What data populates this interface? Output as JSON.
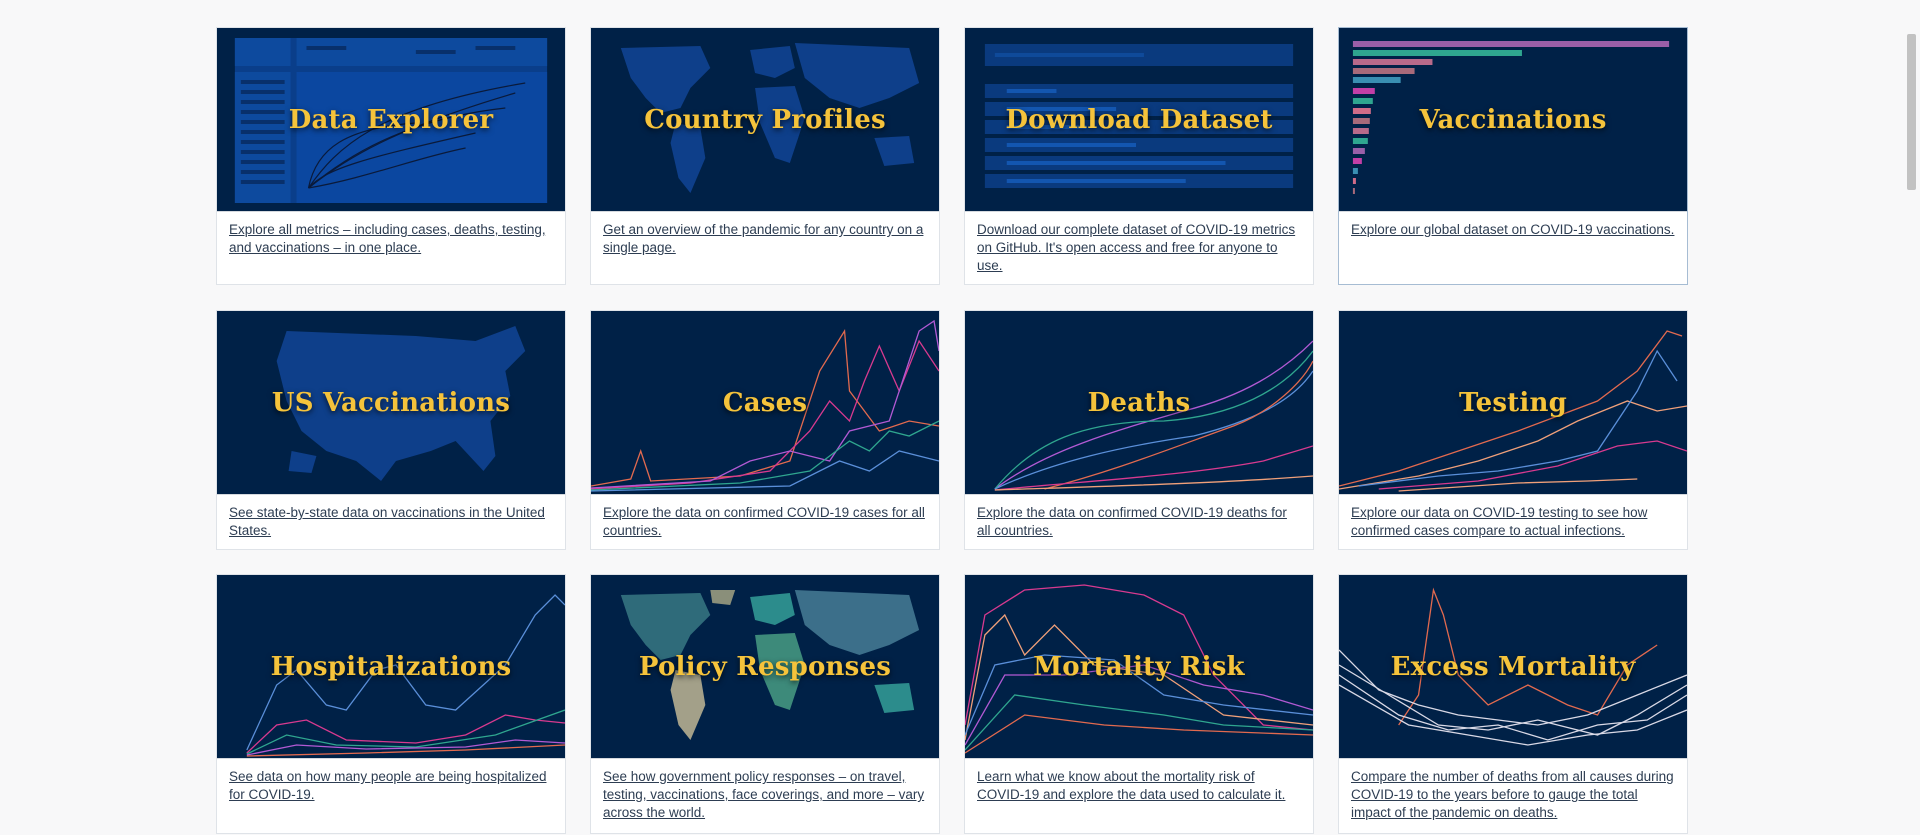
{
  "cards": [
    {
      "title": "Data Explorer",
      "desc": "Explore all metrics – including cases, deaths, testing, and vaccinations – in one place."
    },
    {
      "title": "Country Profiles",
      "desc": "Get an overview of the pandemic for any country on a single page."
    },
    {
      "title": "Download Dataset",
      "desc": "Download our complete dataset of COVID-19 metrics on GitHub. It's open access and free for anyone to use."
    },
    {
      "title": "Vaccinations",
      "desc": "Explore our global dataset on COVID-19 vaccinations."
    },
    {
      "title": "US Vaccinations",
      "desc": "See state-by-state data on vaccinations in the United States."
    },
    {
      "title": "Cases",
      "desc": "Explore the data on confirmed COVID-19 cases for all countries."
    },
    {
      "title": "Deaths",
      "desc": "Explore the data on confirmed COVID-19 deaths for all countries."
    },
    {
      "title": "Testing",
      "desc": "Explore our data on COVID-19 testing to see how confirmed cases compare to actual infections."
    },
    {
      "title": "Hospitalizations",
      "desc": "See data on how many people are being hospitalized for COVID-19."
    },
    {
      "title": "Policy Responses",
      "desc": "See how government policy responses – on travel, testing, vaccinations, face coverings, and more – vary across the world."
    },
    {
      "title": "Mortality Risk",
      "desc": "Learn what we know about the mortality risk of COVID-19 and explore the data used to calculate it."
    },
    {
      "title": "Excess Mortality",
      "desc": "Compare the number of deaths from all causes during COVID-19 to the years before to gauge the total impact of the pandemic on deaths."
    }
  ],
  "colors": {
    "thumb_bg": "#002147",
    "title": "#f5c33b",
    "link": "#2d3d52",
    "line_colors": [
      "#e26a4f",
      "#d83a8f",
      "#b25ad4",
      "#5a8fd9",
      "#2fa68f",
      "#f0a07a",
      "#d9d9e6"
    ]
  }
}
